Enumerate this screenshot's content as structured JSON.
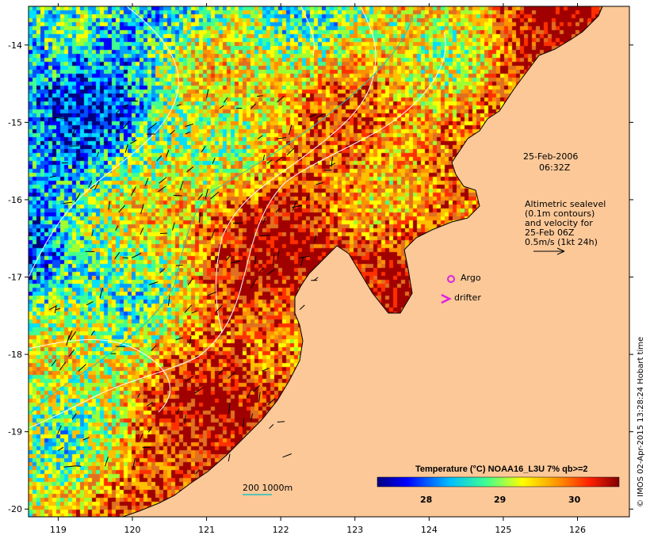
{
  "map": {
    "lon_ticks": [
      "119",
      "120",
      "121",
      "122",
      "123",
      "124",
      "125",
      "126"
    ],
    "lat_ticks": [
      "-14",
      "-15",
      "-16",
      "-17",
      "-18",
      "-19",
      "-20"
    ],
    "lon_range": [
      118.6,
      126.7
    ],
    "lat_range": [
      -20.1,
      -13.5
    ],
    "land_color": "#fcc898",
    "coast_color": "#000000"
  },
  "annotations": {
    "date": "25-Feb-2006",
    "time": "06:32Z",
    "altimetry_lines": [
      "Altimetric sealevel",
      "(0.1m contours)",
      "and velocity for",
      "25-Feb 06Z",
      "0.5m/s (1kt 24h)"
    ],
    "argo_label": "Argo",
    "drifter_label": "drifter",
    "bathymetry_label": "200  1000m"
  },
  "colorbar": {
    "title": "Temperature (°C) NOAA16_L3U 7% qb>=2",
    "ticks": [
      "28",
      "29",
      "30"
    ]
  },
  "credit": "© IMOS 02-Apr-2015 13:28:24 Hobart time",
  "colors": {
    "argo": "#e020e0",
    "drifter": "#e020e0",
    "contour": "#ffffff",
    "bathy_200": "#20c0c0"
  }
}
